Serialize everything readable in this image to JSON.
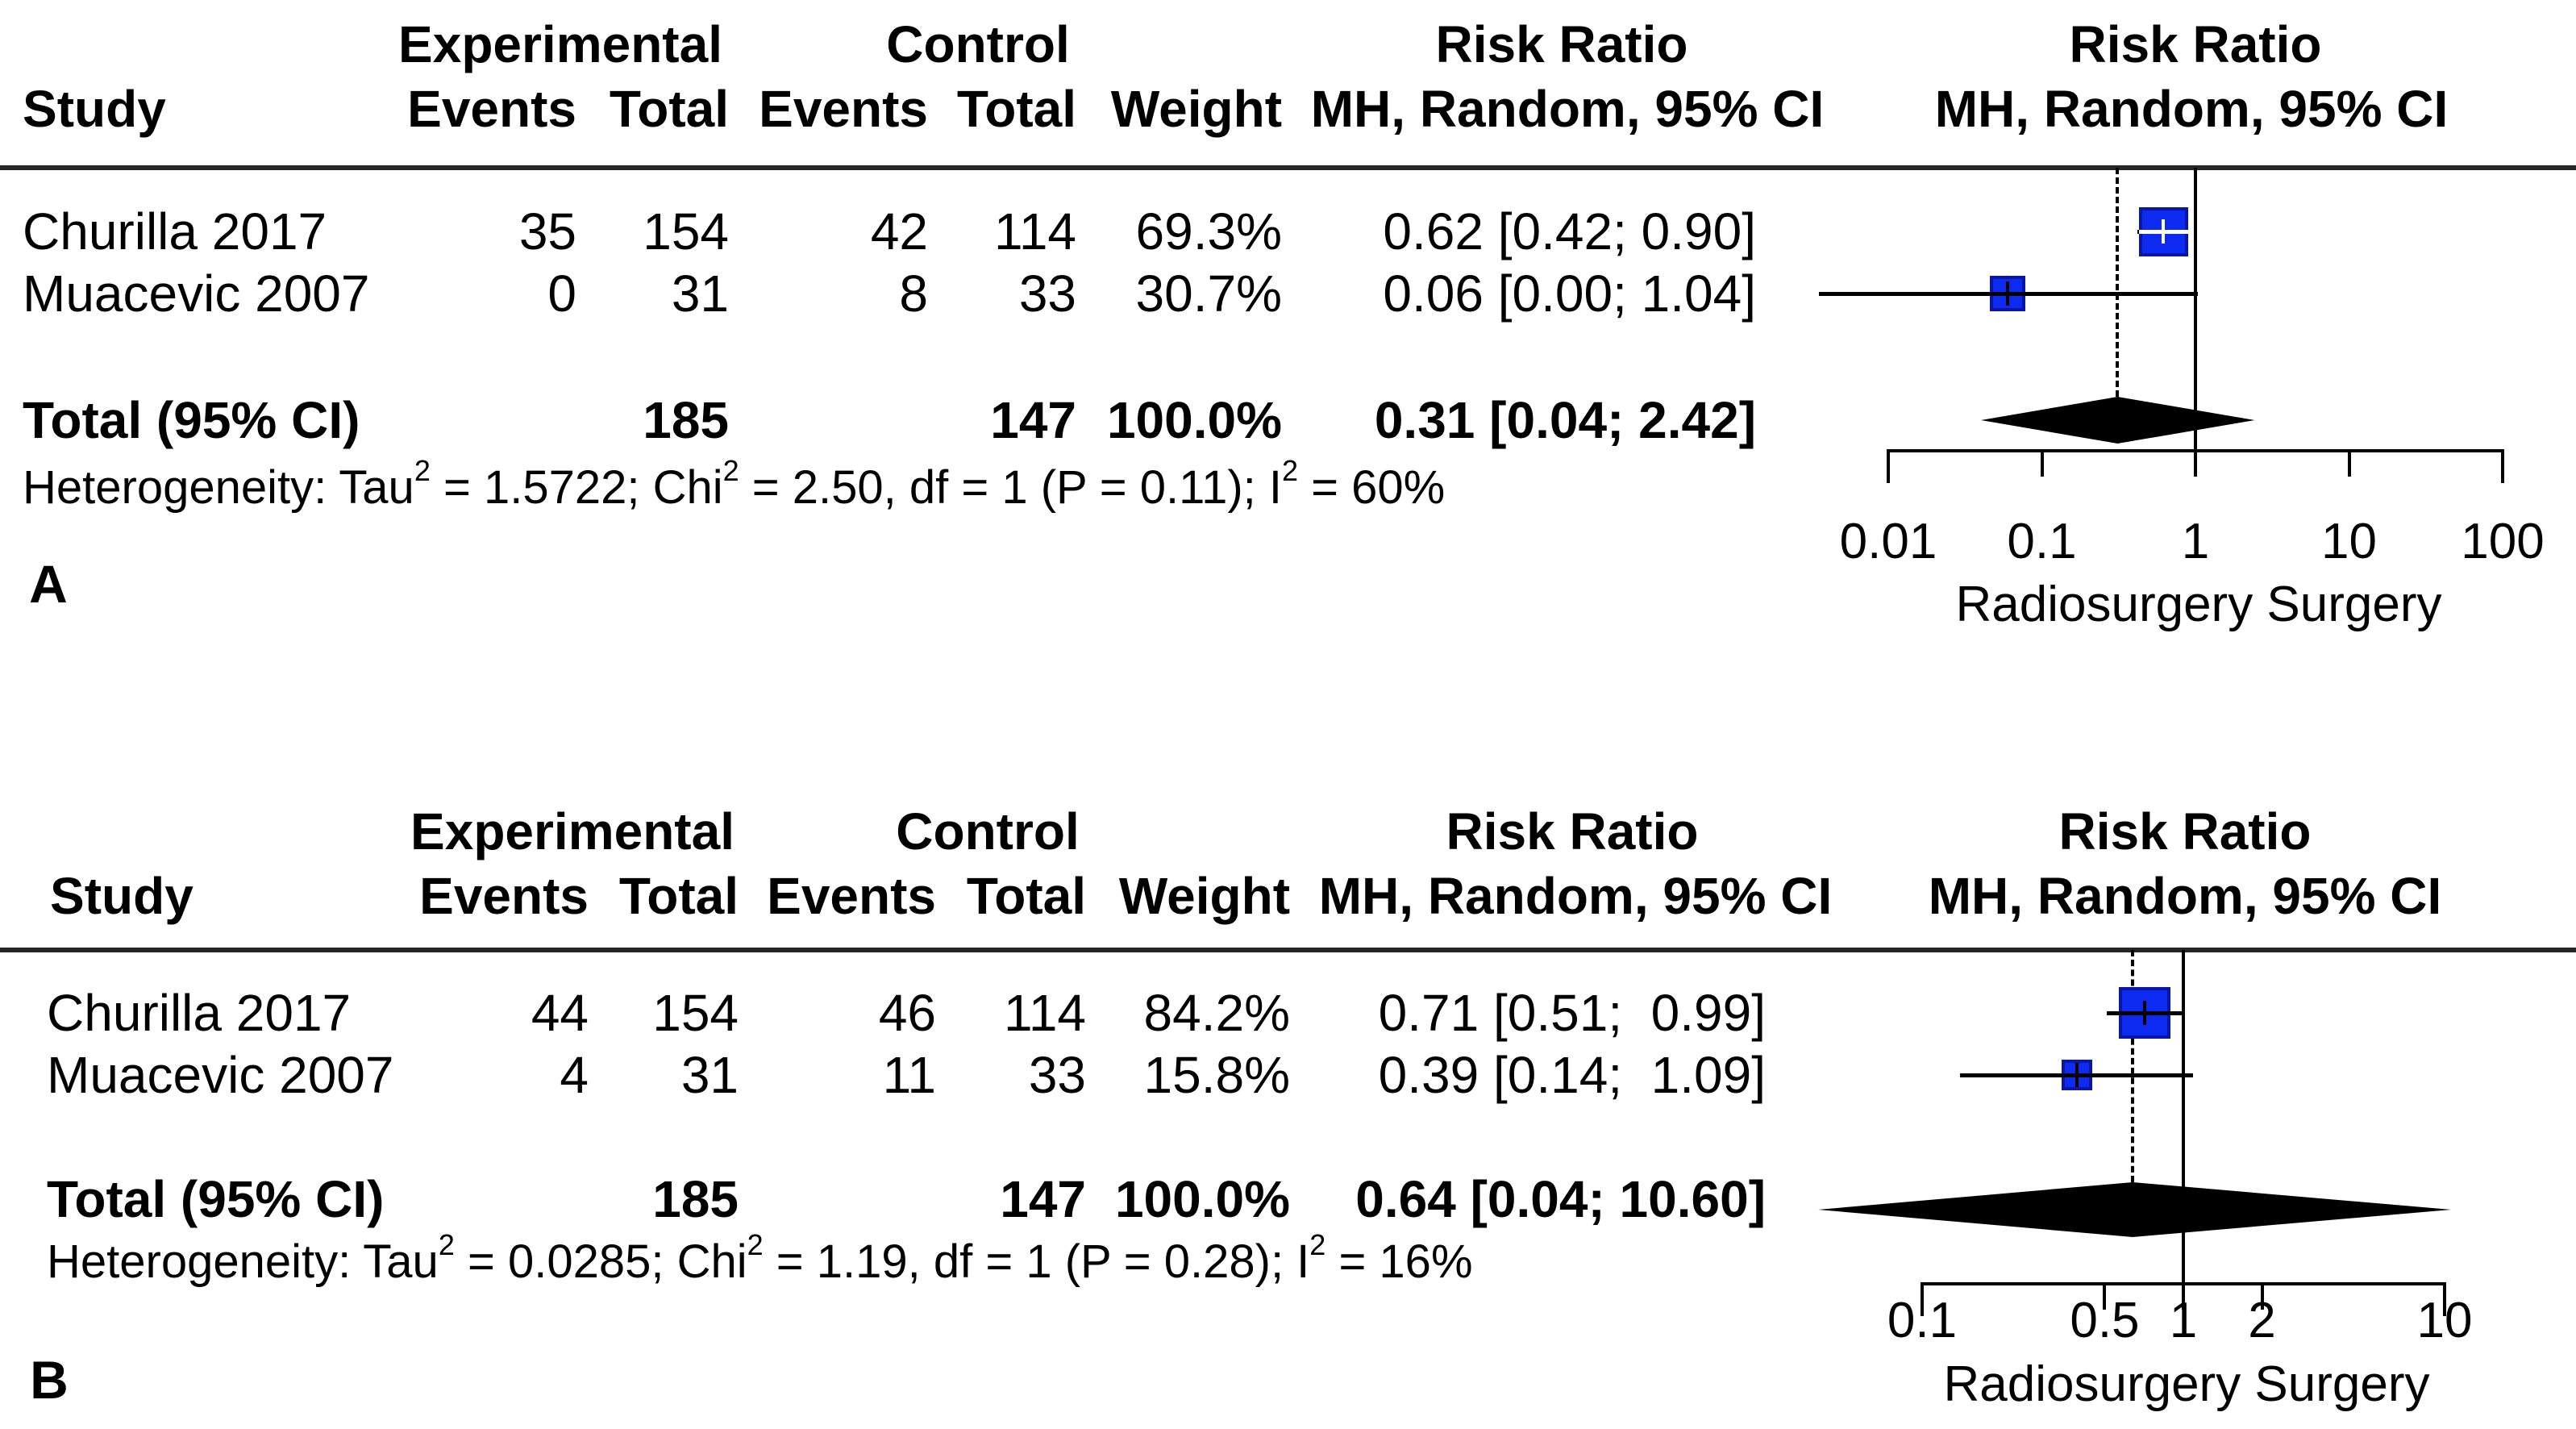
{
  "figure": {
    "panel_labels": [
      "A",
      "B"
    ],
    "square_fill_color": "#0d2bf0",
    "square_border_color": "#0a17a6",
    "diamond_color": "#000000"
  },
  "panels": [
    {
      "label": "A",
      "columns": {
        "study": "Study",
        "group1": "Experimental",
        "group2": "Control",
        "events": "Events",
        "total": "Total",
        "weight": "Weight",
        "rr": "Risk Ratio",
        "method": "MH, Random, 95% CI"
      },
      "rows": [
        {
          "study": "Churilla 2017",
          "e_events": "35",
          "e_total": "154",
          "c_events": "42",
          "c_total": "114",
          "weight": "69.3%",
          "rr_ci": "0.62 [0.42; 0.90]"
        },
        {
          "study": "Muacevic 2007",
          "e_events": "0",
          "e_total": "31",
          "c_events": "8",
          "c_total": "33",
          "weight": "30.7%",
          "rr_ci": "0.06 [0.00; 1.04]"
        }
      ],
      "total": {
        "label": "Total (95% CI)",
        "e_total": "185",
        "c_total": "147",
        "weight": "100.0%",
        "rr_ci": "0.31 [0.04; 2.42]"
      },
      "heterogeneity": {
        "t1": "Heterogeneity: Tau",
        "s1": "2",
        "t2": " = 1.5722; Chi",
        "s2": "2",
        "t3": " = 2.50, df = 1 (P = 0.11); I",
        "s3": "2",
        "t4": " = 60%"
      },
      "axis": {
        "label": "Radiosurgery Surgery"
      }
    },
    {
      "label": "B",
      "columns": {
        "study": "Study",
        "group1": "Experimental",
        "group2": "Control",
        "events": "Events",
        "total": "Total",
        "weight": "Weight",
        "rr": "Risk Ratio",
        "method": "MH, Random, 95% CI"
      },
      "rows": [
        {
          "study": "Churilla 2017",
          "e_events": "44",
          "e_total": "154",
          "c_events": "46",
          "c_total": "114",
          "weight": "84.2%",
          "rr_ci": "0.71 [0.51;  0.99]"
        },
        {
          "study": "Muacevic 2007",
          "e_events": "4",
          "e_total": "31",
          "c_events": "11",
          "c_total": "33",
          "weight": "15.8%",
          "rr_ci": "0.39 [0.14;  1.09]"
        }
      ],
      "total": {
        "label": "Total (95% CI)",
        "e_total": "185",
        "c_total": "147",
        "weight": "100.0%",
        "rr_ci": "0.64 [0.04; 10.60]"
      },
      "heterogeneity": {
        "t1": "Heterogeneity: Tau",
        "s1": "2",
        "t2": " = 0.0285; Chi",
        "s2": "2",
        "t3": " = 1.19, df = 1 (P = 0.28); I",
        "s3": "2",
        "t4": " = 16%"
      },
      "axis": {
        "label": "Radiosurgery Surgery"
      }
    }
  ],
  "chart_data": [
    {
      "type": "scatter",
      "subtype": "forest-plot",
      "panel": "A",
      "title": "Risk Ratio MH, Random, 95% CI",
      "x_scale": "log",
      "studies": [
        {
          "name": "Churilla 2017",
          "events_exp": 35,
          "total_exp": 154,
          "events_ctrl": 42,
          "total_ctrl": 114,
          "weight_pct": 69.3,
          "rr": 0.62,
          "ci_low": 0.42,
          "ci_high": 0.9
        },
        {
          "name": "Muacevic 2007",
          "events_exp": 0,
          "total_exp": 31,
          "events_ctrl": 8,
          "total_ctrl": 33,
          "weight_pct": 30.7,
          "rr": 0.06,
          "ci_low": 0.0,
          "ci_high": 1.04
        }
      ],
      "pooled": {
        "label": "Total (95% CI)",
        "total_exp": 185,
        "total_ctrl": 147,
        "weight_pct": 100.0,
        "rr": 0.31,
        "ci_low": 0.04,
        "ci_high": 2.42
      },
      "heterogeneity": "Tau2 = 1.5722; Chi2 = 2.50, df = 1 (P = 0.11); I2 = 60%",
      "x_ticks": [
        0.01,
        0.1,
        1,
        10,
        100
      ],
      "x_tick_labels": [
        "0.01",
        "0.1",
        "1",
        "10",
        "100"
      ],
      "xlim": [
        0.01,
        100
      ],
      "reference_line": 1,
      "pooled_dashed_line": 0.31,
      "xlabel": "Radiosurgery Surgery"
    },
    {
      "type": "scatter",
      "subtype": "forest-plot",
      "panel": "B",
      "title": "Risk Ratio MH, Random, 95% CI",
      "x_scale": "log",
      "studies": [
        {
          "name": "Churilla 2017",
          "events_exp": 44,
          "total_exp": 154,
          "events_ctrl": 46,
          "total_ctrl": 114,
          "weight_pct": 84.2,
          "rr": 0.71,
          "ci_low": 0.51,
          "ci_high": 0.99
        },
        {
          "name": "Muacevic 2007",
          "events_exp": 4,
          "total_exp": 31,
          "events_ctrl": 11,
          "total_ctrl": 33,
          "weight_pct": 15.8,
          "rr": 0.39,
          "ci_low": 0.14,
          "ci_high": 1.09
        }
      ],
      "pooled": {
        "label": "Total (95% CI)",
        "total_exp": 185,
        "total_ctrl": 147,
        "weight_pct": 100.0,
        "rr": 0.64,
        "ci_low": 0.04,
        "ci_high": 10.6
      },
      "heterogeneity": "Tau2 = 0.0285; Chi2 = 1.19, df = 1 (P = 0.28); I2 = 16%",
      "x_ticks": [
        0.1,
        0.5,
        1,
        2,
        10
      ],
      "x_tick_labels": [
        "0.1",
        "0.5",
        "1",
        "2",
        "10"
      ],
      "xlim": [
        0.1,
        10
      ],
      "reference_line": 1,
      "pooled_dashed_line": 0.64,
      "xlabel": "Radiosurgery Surgery"
    }
  ]
}
